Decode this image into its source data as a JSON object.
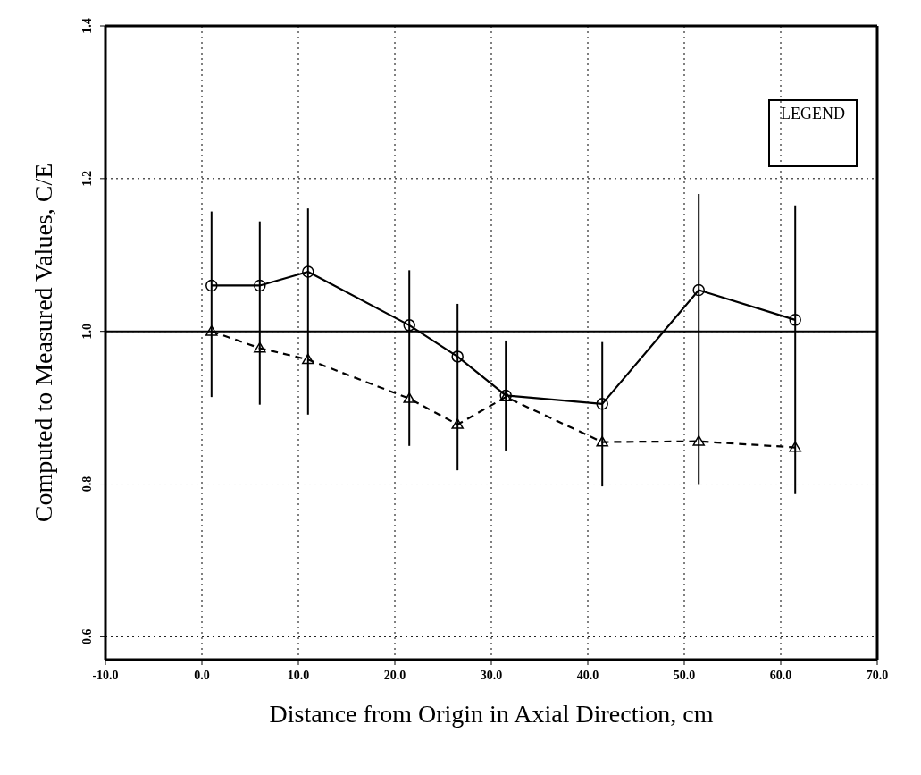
{
  "chart_data": {
    "type": "line",
    "xlabel": "Distance from Origin in Axial Direction, cm",
    "ylabel": "Computed to Measured Values, C/E",
    "legend_title": "LEGEND",
    "grid": true,
    "x": [
      1,
      6,
      11,
      21.5,
      26.5,
      31.5,
      41.5,
      51.5,
      61.5
    ],
    "series": [
      {
        "color": "#000000",
        "marker": "circle",
        "line_style": "solid",
        "values": [
          1.06,
          1.06,
          1.078,
          1.008,
          0.967,
          0.916,
          0.905,
          1.054,
          1.015
        ],
        "errors": [
          [
            0.914,
            1.157
          ],
          [
            0.904,
            1.144
          ],
          [
            0.891,
            1.161
          ],
          [
            0.85,
            1.08
          ],
          [
            0.818,
            1.036
          ],
          [
            0.844,
            0.988
          ],
          [
            0.797,
            0.986
          ],
          [
            0.799,
            1.18
          ],
          [
            0.787,
            1.165
          ]
        ]
      },
      {
        "color": "#000000",
        "marker": "triangle",
        "line_style": "dashed",
        "values": [
          1.0,
          0.978,
          0.963,
          0.912,
          0.878,
          0.914,
          0.855,
          0.856,
          0.848
        ]
      }
    ],
    "ref_lines": [
      {
        "axis": "y",
        "value": 1.0,
        "label": null,
        "color": "#000000",
        "line_style": "solid"
      }
    ],
    "xlim": [
      -10,
      70
    ],
    "xticks": [
      {
        "value": -10,
        "label": "-10.0"
      },
      {
        "value": 0,
        "label": "0.0"
      },
      {
        "value": 10,
        "label": "10.0"
      },
      {
        "value": 20,
        "label": "20.0"
      },
      {
        "value": 30,
        "label": "30.0"
      },
      {
        "value": 40,
        "label": "40.0"
      },
      {
        "value": 50,
        "label": "50.0"
      },
      {
        "value": 60,
        "label": "60.0"
      },
      {
        "value": 70,
        "label": "70.0"
      }
    ],
    "ylim": [
      0.57,
      1.4
    ],
    "yticks": [
      0.6,
      0.8,
      {
        "value": 1.0,
        "label": "1.0"
      },
      1.2,
      1.4
    ]
  }
}
